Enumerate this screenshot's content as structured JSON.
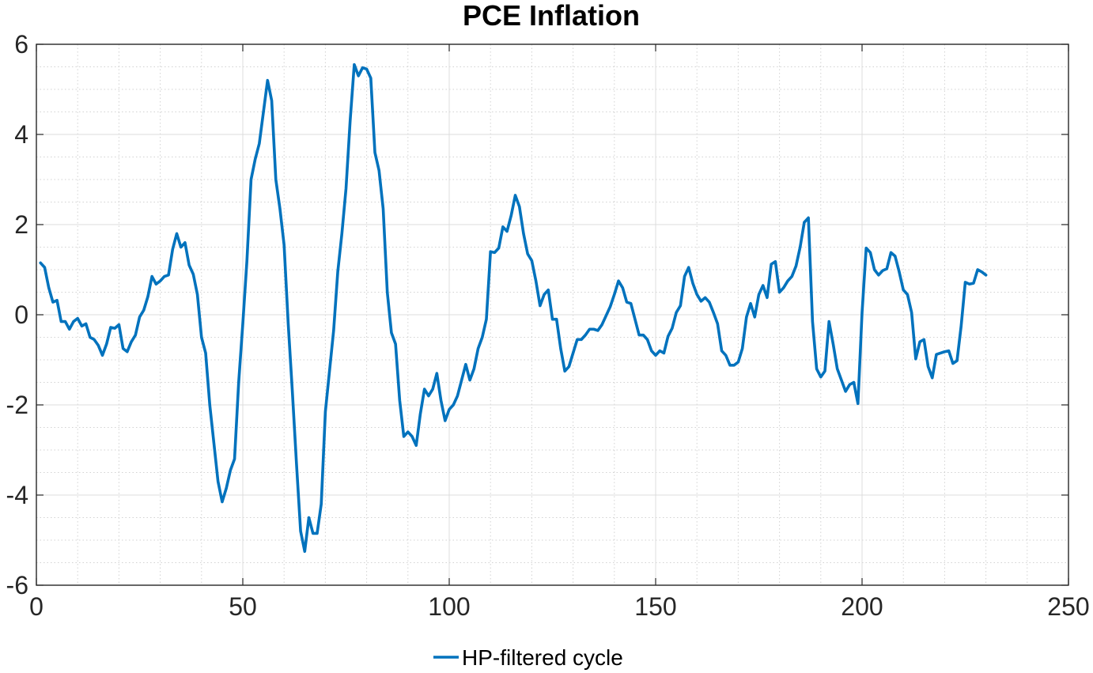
{
  "chart_data": {
    "type": "line",
    "title": "PCE Inflation",
    "xlabel": "",
    "ylabel": "",
    "xlim": [
      0,
      250
    ],
    "ylim": [
      -6,
      6
    ],
    "xticks": [
      0,
      50,
      100,
      150,
      200,
      250
    ],
    "yticks": [
      -6,
      -4,
      -2,
      0,
      2,
      4,
      6
    ],
    "xtick_labels": [
      "0",
      "50",
      "100",
      "150",
      "200",
      "250"
    ],
    "ytick_labels": [
      "-6",
      "-4",
      "-2",
      "0",
      "2",
      "4",
      "6"
    ],
    "grid": true,
    "minor_grid": true,
    "legend_position": "bottom",
    "series": [
      {
        "name": "HP-filtered cycle",
        "color": "#0072BD",
        "x": [
          1,
          2,
          3,
          4,
          5,
          6,
          7,
          8,
          9,
          10,
          11,
          12,
          13,
          14,
          15,
          16,
          17,
          18,
          19,
          20,
          21,
          22,
          23,
          24,
          25,
          26,
          27,
          28,
          29,
          30,
          31,
          32,
          33,
          34,
          35,
          36,
          37,
          38,
          39,
          40,
          41,
          42,
          43,
          44,
          45,
          46,
          47,
          48,
          49,
          50,
          51,
          52,
          53,
          54,
          55,
          56,
          57,
          58,
          59,
          60,
          61,
          62,
          63,
          64,
          65,
          66,
          67,
          68,
          69,
          70,
          71,
          72,
          73,
          74,
          75,
          76,
          77,
          78,
          79,
          80,
          81,
          82,
          83,
          84,
          85,
          86,
          87,
          88,
          89,
          90,
          91,
          92,
          93,
          94,
          95,
          96,
          97,
          98,
          99,
          100,
          101,
          102,
          103,
          104,
          105,
          106,
          107,
          108,
          109,
          110,
          111,
          112,
          113,
          114,
          115,
          116,
          117,
          118,
          119,
          120,
          121,
          122,
          123,
          124,
          125,
          126,
          127,
          128,
          129,
          130,
          131,
          132,
          133,
          134,
          135,
          136,
          137,
          138,
          139,
          140,
          141,
          142,
          143,
          144,
          145,
          146,
          147,
          148,
          149,
          150,
          151,
          152,
          153,
          154,
          155,
          156,
          157,
          158,
          159,
          160,
          161,
          162,
          163,
          164,
          165,
          166,
          167,
          168,
          169,
          170,
          171,
          172,
          173,
          174,
          175,
          176,
          177,
          178,
          179,
          180,
          181,
          182,
          183,
          184,
          185,
          186,
          187,
          188,
          189,
          190,
          191,
          192,
          193,
          194,
          195,
          196,
          197,
          198,
          199,
          200,
          201,
          202,
          203,
          204,
          205,
          206,
          207,
          208,
          209,
          210,
          211,
          212,
          213,
          214,
          215,
          216,
          217,
          218,
          219,
          220,
          221,
          222,
          223,
          224,
          225,
          226,
          227,
          228,
          229,
          230
        ],
        "values": [
          1.15,
          1.05,
          0.6,
          0.28,
          0.32,
          -0.15,
          -0.15,
          -0.32,
          -0.15,
          -0.08,
          -0.25,
          -0.2,
          -0.5,
          -0.55,
          -0.68,
          -0.9,
          -0.65,
          -0.28,
          -0.3,
          -0.22,
          -0.75,
          -0.82,
          -0.6,
          -0.45,
          -0.05,
          0.1,
          0.4,
          0.85,
          0.68,
          0.75,
          0.85,
          0.88,
          1.45,
          1.8,
          1.5,
          1.6,
          1.1,
          0.9,
          0.45,
          -0.5,
          -0.85,
          -2.0,
          -2.85,
          -3.7,
          -4.15,
          -3.85,
          -3.45,
          -3.2,
          -1.5,
          -0.2,
          1.2,
          3.0,
          3.45,
          3.8,
          4.5,
          5.2,
          4.75,
          3.0,
          2.35,
          1.55,
          -0.2,
          -1.7,
          -3.3,
          -4.8,
          -5.25,
          -4.5,
          -4.85,
          -4.85,
          -4.2,
          -2.15,
          -1.25,
          -0.35,
          0.95,
          1.8,
          2.8,
          4.3,
          5.55,
          5.3,
          5.48,
          5.45,
          5.25,
          3.6,
          3.2,
          2.35,
          0.5,
          -0.4,
          -0.65,
          -1.9,
          -2.7,
          -2.6,
          -2.7,
          -2.9,
          -2.2,
          -1.65,
          -1.8,
          -1.65,
          -1.3,
          -1.9,
          -2.35,
          -2.1,
          -2.0,
          -1.8,
          -1.45,
          -1.1,
          -1.45,
          -1.2,
          -0.75,
          -0.5,
          -0.1,
          1.4,
          1.38,
          1.48,
          1.95,
          1.85,
          2.2,
          2.65,
          2.4,
          1.8,
          1.35,
          1.2,
          0.75,
          0.2,
          0.45,
          0.55,
          -0.1,
          -0.1,
          -0.75,
          -1.25,
          -1.15,
          -0.85,
          -0.55,
          -0.55,
          -0.45,
          -0.32,
          -0.32,
          -0.35,
          -0.22,
          -0.02,
          0.18,
          0.45,
          0.75,
          0.6,
          0.28,
          0.25,
          -0.1,
          -0.45,
          -0.45,
          -0.55,
          -0.8,
          -0.9,
          -0.8,
          -0.85,
          -0.48,
          -0.3,
          0.05,
          0.2,
          0.85,
          1.05,
          0.7,
          0.45,
          0.3,
          0.38,
          0.28,
          0.05,
          -0.2,
          -0.8,
          -0.9,
          -1.12,
          -1.12,
          -1.05,
          -0.75,
          -0.05,
          0.25,
          -0.05,
          0.45,
          0.65,
          0.38,
          1.12,
          1.18,
          0.5,
          0.6,
          0.75,
          0.85,
          1.08,
          1.5,
          2.05,
          2.15,
          -0.15,
          -1.2,
          -1.38,
          -1.25,
          -0.15,
          -0.65,
          -1.2,
          -1.45,
          -1.7,
          -1.55,
          -1.5,
          -1.97,
          0.05,
          1.48,
          1.38,
          1.0,
          0.88,
          0.98,
          1.02,
          1.38,
          1.3,
          0.95,
          0.55,
          0.45,
          0.05,
          -0.98,
          -0.6,
          -0.55,
          -1.15,
          -1.4,
          -0.88,
          -0.85,
          -0.82,
          -0.8,
          -1.08,
          -1.02,
          -0.25,
          0.72,
          0.68,
          0.7,
          1.0,
          0.95,
          0.88
        ]
      }
    ]
  }
}
